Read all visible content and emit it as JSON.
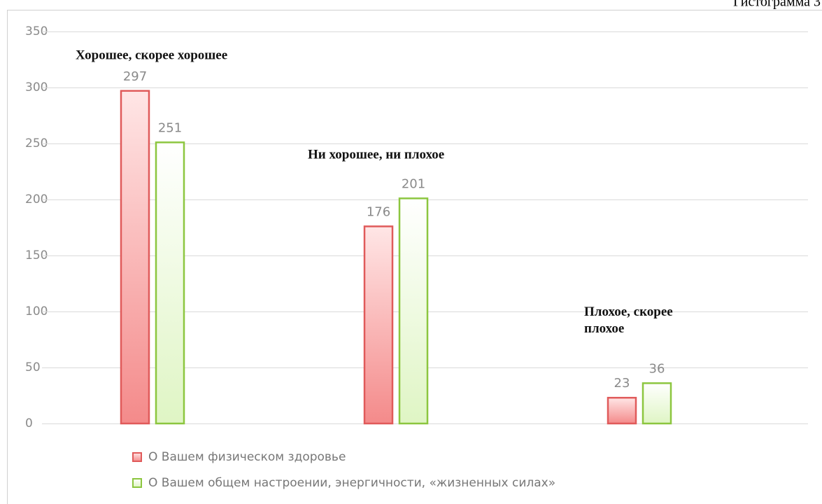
{
  "chart_data": {
    "type": "bar",
    "caption": "Гистограмма 3",
    "categories": [
      "Хорошее, скорее хорошее",
      "Ни хорошее, ни плохое",
      "Плохое, скорее плохое"
    ],
    "series": [
      {
        "name": "О Вашем физическом здоровье",
        "color": "#e05a5a",
        "values": [
          297,
          176,
          23
        ]
      },
      {
        "name": "О Вашем общем настроении, энергичности, «жизненных силах»",
        "color": "#8cc63f",
        "values": [
          251,
          201,
          36
        ]
      }
    ],
    "ylim": [
      0,
      350
    ],
    "yticks": [
      0,
      50,
      100,
      150,
      200,
      250,
      300,
      350
    ],
    "grid": true
  }
}
